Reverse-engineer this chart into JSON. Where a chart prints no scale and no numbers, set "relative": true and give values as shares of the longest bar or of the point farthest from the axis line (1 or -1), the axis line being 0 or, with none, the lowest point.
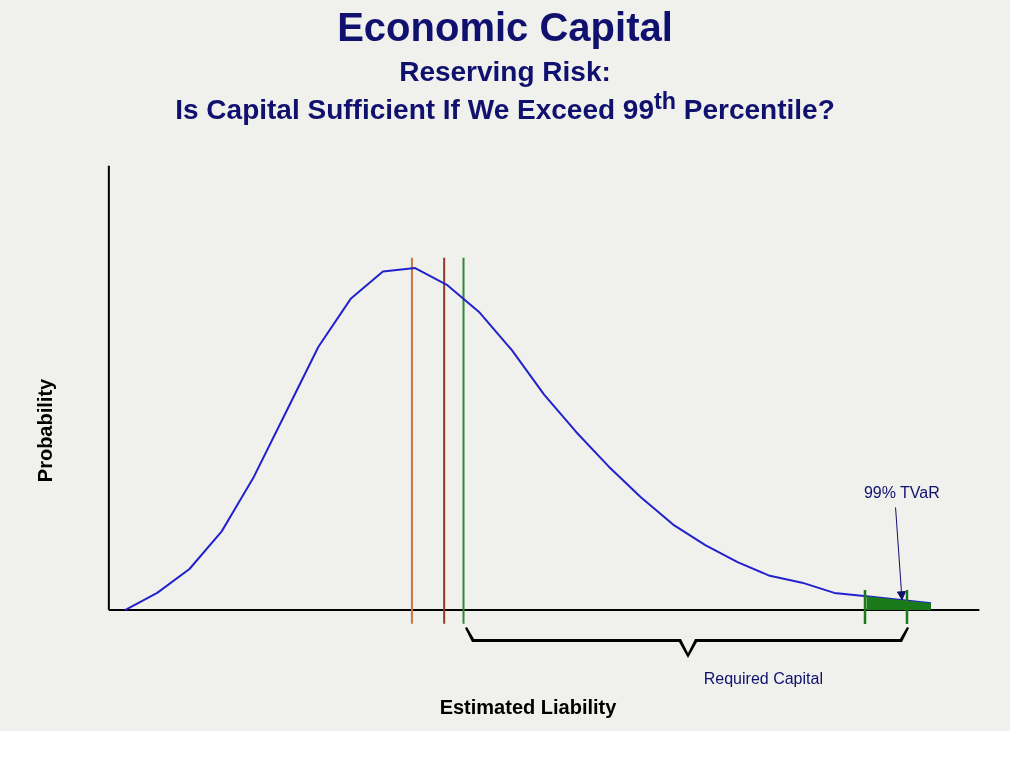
{
  "chart_data": {
    "type": "line",
    "title": "Economic Capital",
    "subtitle": "Reserving Risk: Is Capital Sufficient If We Exceed 99$^{th}$ Percentile?",
    "xlabel": "Estimated Liability",
    "ylabel": "Probability",
    "relative": true,
    "categories": [
      null,
      null,
      null,
      null,
      null,
      null,
      null,
      null,
      null,
      null,
      null,
      null,
      null,
      null,
      null,
      null,
      null,
      null,
      null,
      null,
      null,
      null,
      null,
      null,
      null,
      null
    ],
    "series": [
      {
        "color": "#2222cc",
        "values": [
          0.0,
          0.05,
          0.12,
          0.23,
          0.39,
          0.58,
          0.77,
          0.91,
          0.99,
          1.0,
          0.95,
          0.87,
          0.76,
          0.63,
          0.52,
          0.42,
          0.33,
          0.25,
          0.19,
          0.14,
          0.1,
          0.08,
          0.05,
          0.04,
          0.03,
          0.02
        ]
      },
      {
        "type": "area",
        "color": "#1a7a1a",
        "values": [
          null,
          null,
          null,
          null,
          null,
          null,
          null,
          null,
          null,
          null,
          null,
          null,
          null,
          null,
          null,
          null,
          null,
          null,
          null,
          null,
          null,
          null,
          null,
          0.04,
          0.03,
          0.02
        ]
      }
    ],
    "annotations": [
      "99% TVaR",
      "Required Capital"
    ],
    "marker": "none",
    "line_style": "solid"
  }
}
